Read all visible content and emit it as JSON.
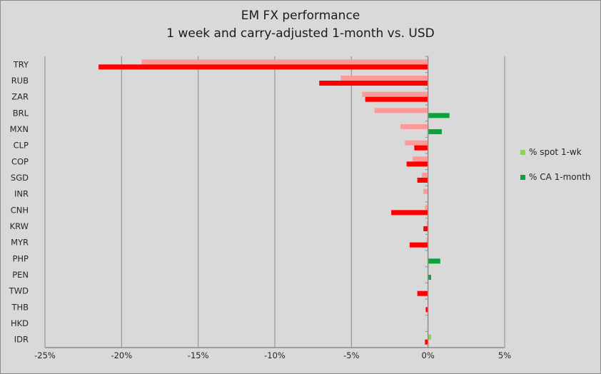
{
  "chart_data": {
    "type": "bar",
    "orientation": "horizontal",
    "title": "EM FX performance",
    "subtitle": "1 week and carry-adjusted 1-month vs. USD",
    "xlabel": "",
    "ylabel": "",
    "xlim": [
      -25,
      5
    ],
    "xticks": [
      -25,
      -20,
      -15,
      -10,
      -5,
      0,
      5
    ],
    "xtick_labels": [
      "-25%",
      "-20%",
      "-15%",
      "-10%",
      "-5%",
      "0%",
      "5%"
    ],
    "grid": true,
    "legend_position": "right",
    "categories": [
      "TRY",
      "RUB",
      "ZAR",
      "BRL",
      "MXN",
      "CLP",
      "COP",
      "SGD",
      "INR",
      "CNH",
      "KRW",
      "MYR",
      "PHP",
      "PEN",
      "TWD",
      "THB",
      "HKD",
      "IDR"
    ],
    "series": [
      {
        "name": "% spot 1-wk",
        "color_pos": "#92d050",
        "color_neg": "#ff9999",
        "values": [
          -18.7,
          -5.7,
          -4.3,
          -3.5,
          -1.8,
          -1.5,
          -1.0,
          -0.4,
          -0.3,
          -0.2,
          -0.1,
          -0.1,
          0,
          0,
          0,
          0,
          0,
          0.2
        ]
      },
      {
        "name": "% CA 1-month",
        "color_pos": "#0ca33c",
        "color_neg": "#ff0000",
        "values": [
          -21.5,
          -7.1,
          -4.1,
          1.4,
          0.9,
          -0.9,
          -1.4,
          -0.7,
          0,
          -2.4,
          -0.3,
          -1.2,
          0.8,
          0.2,
          -0.7,
          -0.15,
          0,
          -0.2
        ]
      }
    ]
  }
}
